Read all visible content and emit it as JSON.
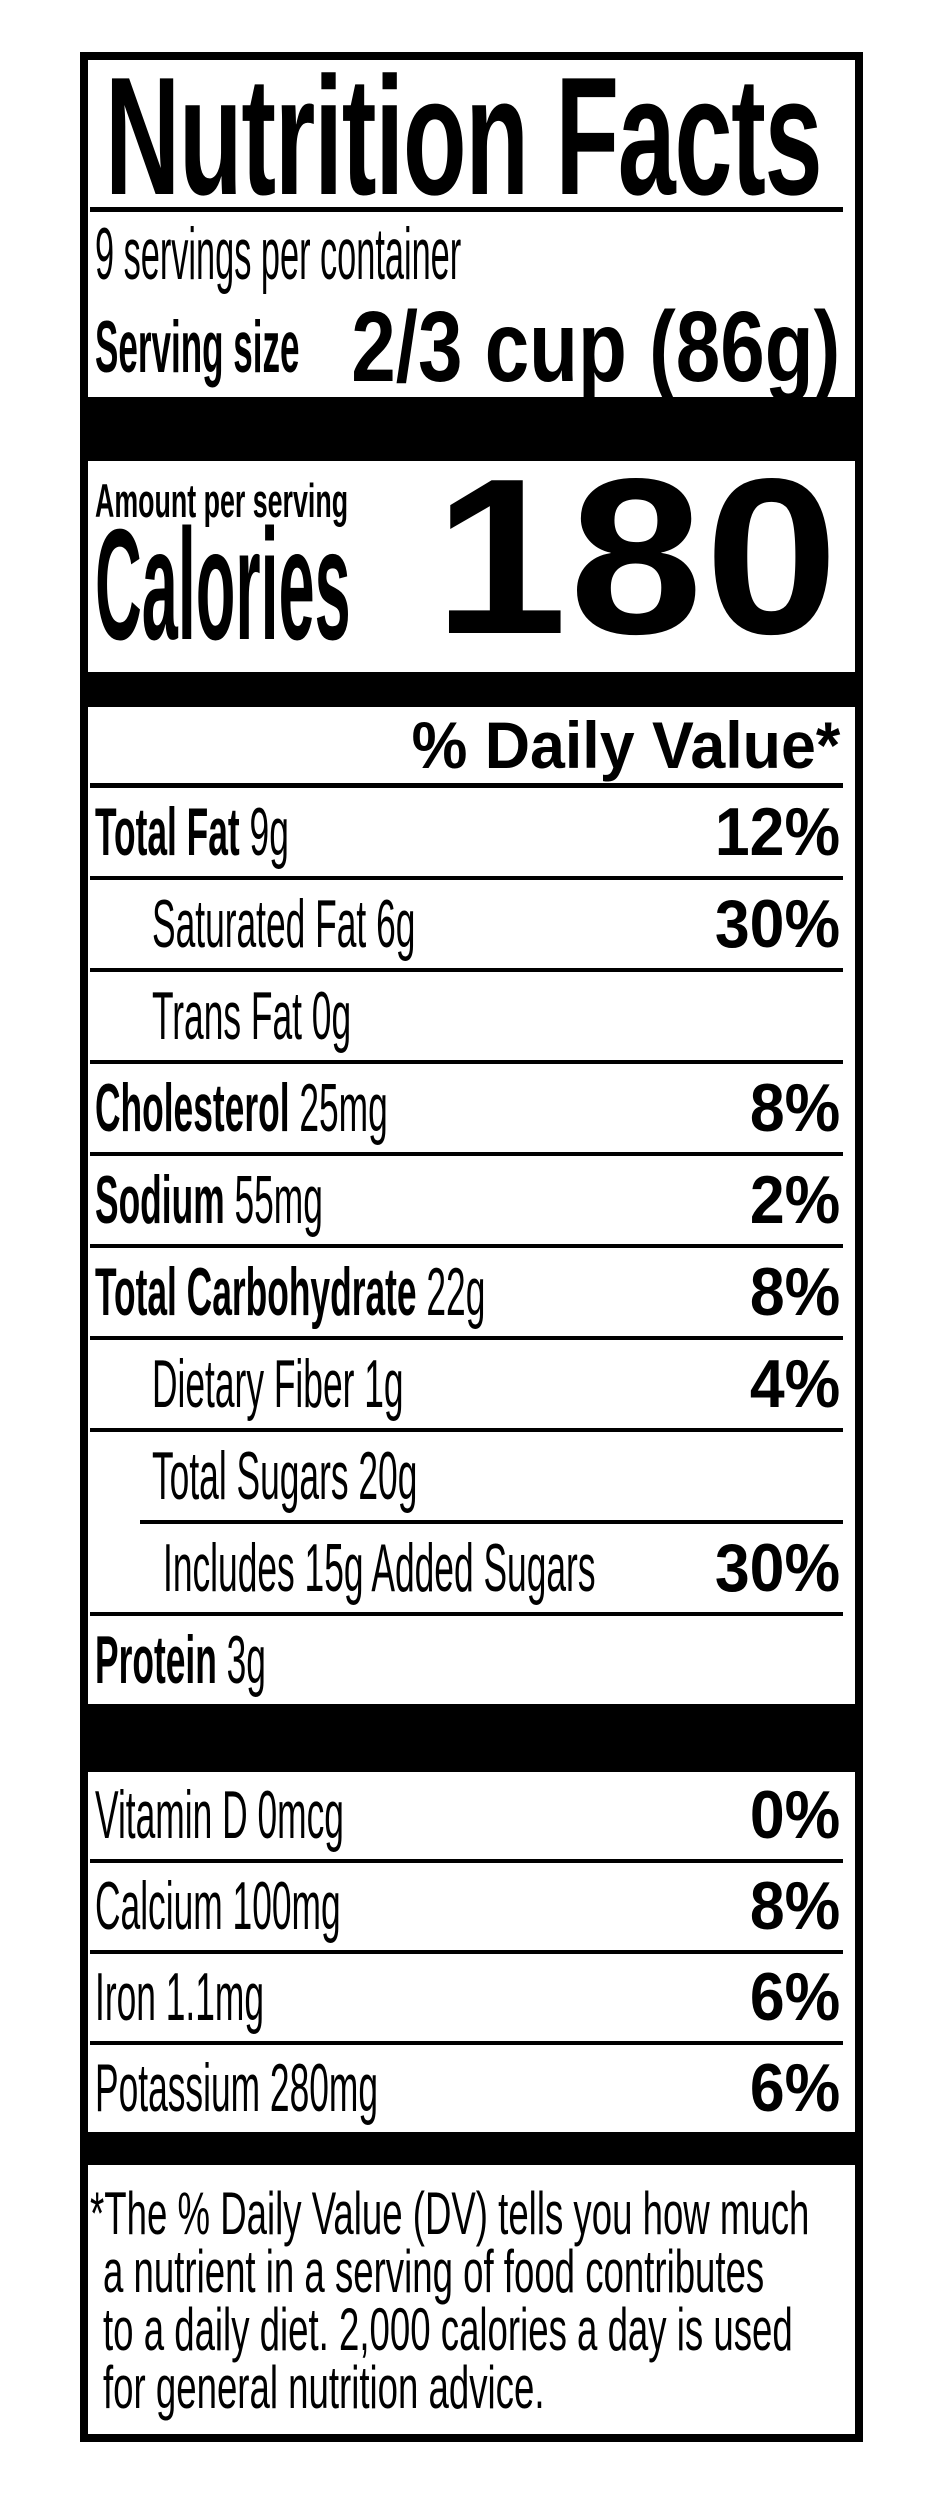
{
  "title": "Nutrition Facts",
  "servings_per_container": "9 servings per container",
  "serving_size": {
    "label": "Serving size",
    "value": "2/3 cup (86g)"
  },
  "calories": {
    "amount_label": "Amount per serving",
    "word": "Calories",
    "value": "180"
  },
  "daily_value_header": "% Daily Value*",
  "nutrients": [
    {
      "bold": "Total Fat",
      "rest": " 9g",
      "value": "12%",
      "indent": 0,
      "rule": true
    },
    {
      "bold": "",
      "rest": "Saturated Fat 6g",
      "value": "30%",
      "indent": 1,
      "rule": true
    },
    {
      "bold": "",
      "rest": "Trans Fat 0g",
      "value": "",
      "indent": 1,
      "rule": true
    },
    {
      "bold": "Cholesterol",
      "rest": " 25mg",
      "value": "8%",
      "indent": 0,
      "rule": true
    },
    {
      "bold": "Sodium",
      "rest": " 55mg",
      "value": "2%",
      "indent": 0,
      "rule": true
    },
    {
      "bold": "Total Carbohydrate",
      "rest": " 22g",
      "value": "8%",
      "indent": 0,
      "rule": true
    },
    {
      "bold": "",
      "rest": "Dietary Fiber 1g",
      "value": "4%",
      "indent": 1,
      "rule": true
    },
    {
      "bold": "",
      "rest": "Total Sugars 20g",
      "value": "",
      "indent": 1,
      "rule": true,
      "rule_indented": true
    },
    {
      "bold": "",
      "rest": "Includes 15g Added Sugars",
      "value": "30%",
      "indent": 2,
      "rule": true
    },
    {
      "bold": "Protein",
      "rest": " 3g",
      "value": "",
      "indent": 0,
      "rule": false
    }
  ],
  "vitamins": [
    {
      "rest": "Vitamin D 0mcg",
      "value": "0%",
      "rule": true
    },
    {
      "rest": "Calcium 100mg",
      "value": "8%",
      "rule": true
    },
    {
      "rest": "Iron 1.1mg",
      "value": "6%",
      "rule": true
    },
    {
      "rest": "Potassium 280mg",
      "value": "6%",
      "rule": false
    }
  ],
  "footnote_lines": [
    "*The % Daily Value (DV) tells you how much",
    "a nutrient in a serving of food contributes",
    "to a daily diet. 2,000 calories a day is used",
    "for general nutrition advice."
  ],
  "colors": {
    "ink": "#000000",
    "background": "#ffffff"
  }
}
